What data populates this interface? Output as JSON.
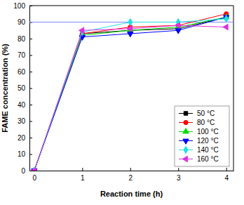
{
  "chart_data": {
    "type": "line",
    "x_label": "Reaction time (h)",
    "y_label": "FAME concentration (%)",
    "x": [
      0,
      1,
      2,
      3,
      4
    ],
    "xlim": [
      -0.1,
      4.15
    ],
    "xticks": [
      0,
      1,
      2,
      3,
      4
    ],
    "ylim": [
      0,
      100
    ],
    "yticks": [
      0,
      10,
      20,
      30,
      40,
      50,
      60,
      70,
      80,
      90,
      100
    ],
    "reference_line": 90,
    "legend": "lower right",
    "series": [
      {
        "name": "50 °C",
        "color": "#000000",
        "marker": "square",
        "values": [
          0,
          83,
          85,
          86,
          93
        ]
      },
      {
        "name": "80 °C",
        "color": "#ff0000",
        "marker": "circle",
        "values": [
          0,
          83,
          87,
          88,
          95
        ]
      },
      {
        "name": "100 °C",
        "color": "#00dd00",
        "marker": "triangle",
        "values": [
          0,
          82,
          85,
          87,
          93
        ]
      },
      {
        "name": "120 °C",
        "color": "#0000ff",
        "marker": "triangle-down",
        "values": [
          0,
          81,
          83,
          85,
          93
        ]
      },
      {
        "name": "140 °C",
        "color": "#22e0e0",
        "marker": "diamond",
        "values": [
          0,
          84,
          90,
          90,
          92
        ]
      },
      {
        "name": "160 °C",
        "color": "#dd33dd",
        "marker": "triangle-left",
        "values": [
          0,
          85,
          86,
          88,
          87
        ]
      }
    ]
  }
}
